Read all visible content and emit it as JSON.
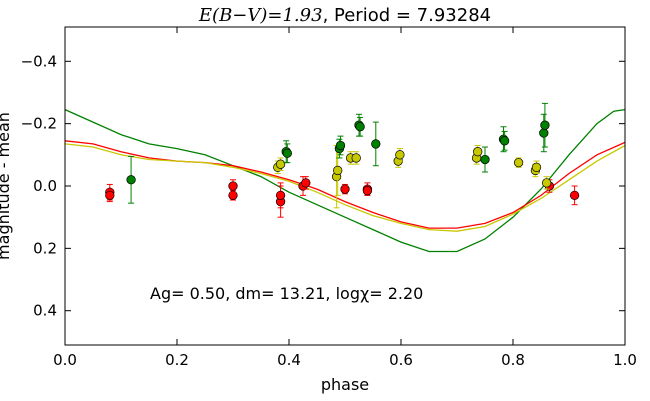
{
  "chart_data": {
    "type": "scatter",
    "title_math": "E(B−V)=1.93",
    "title_rest": ", Period = 7.93284",
    "xlabel": "phase",
    "ylabel": "magnitude - mean",
    "xlim": [
      0.0,
      1.0
    ],
    "ylim": [
      0.51,
      -0.51
    ],
    "x_ticks": [
      0.0,
      0.2,
      0.4,
      0.6,
      0.8,
      1.0
    ],
    "x_tick_labels": [
      "0.0",
      "0.2",
      "0.4",
      "0.6",
      "0.8",
      "1.0"
    ],
    "y_ticks": [
      -0.4,
      -0.2,
      0.0,
      0.2,
      0.4
    ],
    "y_tick_labels": [
      "−0.4",
      "−0.2",
      "0.0",
      "0.2",
      "0.4"
    ],
    "grid": false,
    "annotation": "Ag= 0.50, dm=  13.21, logχ=  2.20",
    "series": [
      {
        "color": "#ff0000",
        "points": [
          {
            "x": 0.08,
            "y": 0.02,
            "err": 0.025
          },
          {
            "x": 0.08,
            "y": 0.03,
            "err": 0.02
          },
          {
            "x": 0.3,
            "y": 0.03,
            "err": 0.015
          },
          {
            "x": 0.3,
            "y": 0.0,
            "err": 0.02
          },
          {
            "x": 0.385,
            "y": 0.05,
            "err": 0.05
          },
          {
            "x": 0.385,
            "y": 0.03,
            "err": 0.04
          },
          {
            "x": 0.425,
            "y": 0.0,
            "err": 0.03
          },
          {
            "x": 0.43,
            "y": -0.01,
            "err": 0.02
          },
          {
            "x": 0.5,
            "y": 0.01,
            "err": 0.015
          },
          {
            "x": 0.54,
            "y": 0.01,
            "err": 0.02
          },
          {
            "x": 0.54,
            "y": 0.015,
            "err": 0.015
          },
          {
            "x": 0.865,
            "y": 0.0,
            "err": 0.02
          },
          {
            "x": 0.91,
            "y": 0.03,
            "err": 0.03
          }
        ]
      },
      {
        "color": "#c8c800",
        "points": [
          {
            "x": 0.38,
            "y": -0.06,
            "err": 0.02
          },
          {
            "x": 0.385,
            "y": -0.07,
            "err": 0.02
          },
          {
            "x": 0.485,
            "y": -0.03,
            "err": 0.1
          },
          {
            "x": 0.487,
            "y": -0.05,
            "err": 0.08
          },
          {
            "x": 0.51,
            "y": -0.09,
            "err": 0.02
          },
          {
            "x": 0.52,
            "y": -0.09,
            "err": 0.02
          },
          {
            "x": 0.595,
            "y": -0.08,
            "err": 0.02
          },
          {
            "x": 0.598,
            "y": -0.1,
            "err": 0.02
          },
          {
            "x": 0.735,
            "y": -0.09,
            "err": 0.02
          },
          {
            "x": 0.737,
            "y": -0.11,
            "err": 0.02
          },
          {
            "x": 0.81,
            "y": -0.075,
            "err": 0.015
          },
          {
            "x": 0.84,
            "y": -0.05,
            "err": 0.02
          },
          {
            "x": 0.842,
            "y": -0.06,
            "err": 0.02
          },
          {
            "x": 0.86,
            "y": -0.01,
            "err": 0.02
          }
        ]
      },
      {
        "color": "#008000",
        "points": [
          {
            "x": 0.118,
            "y": -0.02,
            "err": 0.075
          },
          {
            "x": 0.395,
            "y": -0.11,
            "err": 0.035
          },
          {
            "x": 0.397,
            "y": -0.105,
            "err": 0.03
          },
          {
            "x": 0.49,
            "y": -0.12,
            "err": 0.03
          },
          {
            "x": 0.492,
            "y": -0.13,
            "err": 0.03
          },
          {
            "x": 0.525,
            "y": -0.195,
            "err": 0.035
          },
          {
            "x": 0.527,
            "y": -0.19,
            "err": 0.03
          },
          {
            "x": 0.555,
            "y": -0.135,
            "err": 0.07
          },
          {
            "x": 0.75,
            "y": -0.085,
            "err": 0.04
          },
          {
            "x": 0.783,
            "y": -0.15,
            "err": 0.04
          },
          {
            "x": 0.785,
            "y": -0.145,
            "err": 0.03
          },
          {
            "x": 0.855,
            "y": -0.17,
            "err": 0.06
          },
          {
            "x": 0.857,
            "y": -0.195,
            "err": 0.07
          }
        ]
      }
    ],
    "curves": [
      {
        "color": "#008000",
        "points": [
          [
            0.0,
            -0.245
          ],
          [
            0.05,
            -0.205
          ],
          [
            0.1,
            -0.165
          ],
          [
            0.15,
            -0.135
          ],
          [
            0.2,
            -0.12
          ],
          [
            0.25,
            -0.1
          ],
          [
            0.3,
            -0.065
          ],
          [
            0.35,
            -0.03
          ],
          [
            0.4,
            0.02
          ],
          [
            0.45,
            0.06
          ],
          [
            0.5,
            0.1
          ],
          [
            0.55,
            0.14
          ],
          [
            0.6,
            0.18
          ],
          [
            0.65,
            0.21
          ],
          [
            0.7,
            0.21
          ],
          [
            0.75,
            0.17
          ],
          [
            0.8,
            0.1
          ],
          [
            0.85,
            0.01
          ],
          [
            0.9,
            -0.1
          ],
          [
            0.95,
            -0.2
          ],
          [
            0.98,
            -0.24
          ],
          [
            1.0,
            -0.245
          ]
        ]
      },
      {
        "color": "#ff0000",
        "points": [
          [
            0.0,
            -0.145
          ],
          [
            0.05,
            -0.135
          ],
          [
            0.1,
            -0.11
          ],
          [
            0.15,
            -0.09
          ],
          [
            0.2,
            -0.08
          ],
          [
            0.25,
            -0.075
          ],
          [
            0.3,
            -0.065
          ],
          [
            0.35,
            -0.045
          ],
          [
            0.4,
            -0.02
          ],
          [
            0.45,
            0.01
          ],
          [
            0.5,
            0.05
          ],
          [
            0.55,
            0.085
          ],
          [
            0.6,
            0.115
          ],
          [
            0.65,
            0.135
          ],
          [
            0.7,
            0.135
          ],
          [
            0.75,
            0.12
          ],
          [
            0.8,
            0.085
          ],
          [
            0.85,
            0.03
          ],
          [
            0.9,
            -0.04
          ],
          [
            0.95,
            -0.1
          ],
          [
            1.0,
            -0.14
          ]
        ]
      },
      {
        "color": "#c8c800",
        "points": [
          [
            0.0,
            -0.135
          ],
          [
            0.05,
            -0.125
          ],
          [
            0.1,
            -0.1
          ],
          [
            0.15,
            -0.085
          ],
          [
            0.2,
            -0.08
          ],
          [
            0.25,
            -0.075
          ],
          [
            0.3,
            -0.06
          ],
          [
            0.35,
            -0.04
          ],
          [
            0.4,
            -0.015
          ],
          [
            0.45,
            0.02
          ],
          [
            0.5,
            0.06
          ],
          [
            0.55,
            0.095
          ],
          [
            0.6,
            0.12
          ],
          [
            0.65,
            0.14
          ],
          [
            0.7,
            0.145
          ],
          [
            0.75,
            0.13
          ],
          [
            0.8,
            0.09
          ],
          [
            0.85,
            0.04
          ],
          [
            0.9,
            -0.02
          ],
          [
            0.95,
            -0.08
          ],
          [
            1.0,
            -0.13
          ]
        ]
      }
    ]
  }
}
